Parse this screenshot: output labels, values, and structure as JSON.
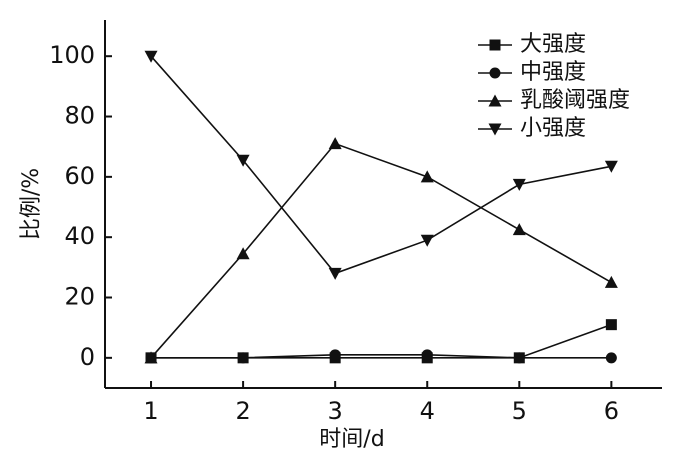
{
  "chart_data": {
    "type": "line",
    "x_label": "时间/d",
    "y_label": "比例/%",
    "x": [
      1,
      2,
      3,
      4,
      5,
      6
    ],
    "xlim": [
      0.5,
      6.55
    ],
    "xticks": [
      1,
      2,
      3,
      4,
      5,
      6
    ],
    "ylim": [
      -10,
      112
    ],
    "yticks": [
      0,
      20,
      40,
      60,
      80,
      100
    ],
    "legend": "upper right",
    "series": [
      {
        "name": "大强度",
        "color": "#111111",
        "marker": "square",
        "values": [
          0,
          0,
          0,
          0,
          0,
          11
        ]
      },
      {
        "name": "中强度",
        "color": "#111111",
        "marker": "circle",
        "values": [
          0,
          0,
          1,
          1,
          0,
          0
        ]
      },
      {
        "name": "乳酸阈强度",
        "color": "#111111",
        "marker": "triangle-up",
        "values": [
          0,
          34.5,
          71,
          60,
          42.5,
          25
        ]
      },
      {
        "name": "小强度",
        "color": "#111111",
        "marker": "triangle-down",
        "values": [
          100,
          65.5,
          28,
          39,
          57.5,
          63.5
        ]
      }
    ]
  }
}
